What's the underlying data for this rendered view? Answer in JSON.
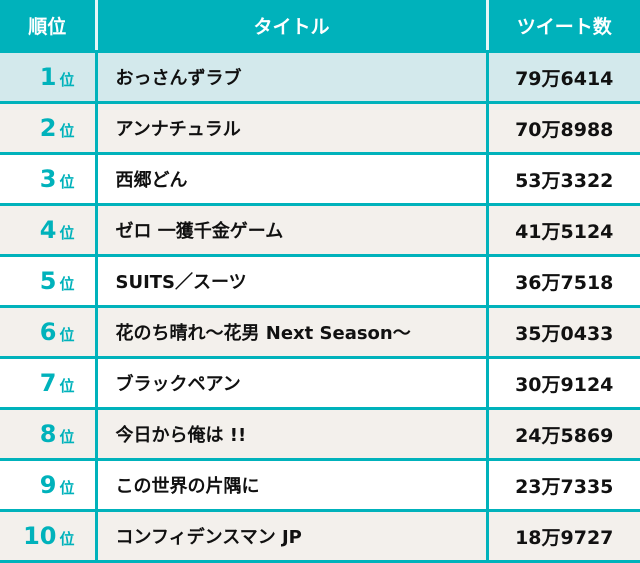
{
  "header": {
    "rank": "順位",
    "title": "タイトル",
    "tweets": "ツイート数"
  },
  "rank_suffix": "位",
  "colors": {
    "accent": "#00b2bb",
    "top_row": "#d3e9ec",
    "alt_row": "#f3f0ec"
  },
  "rows": [
    {
      "rank": "1",
      "title": "おっさんずラブ",
      "tweets": "79万6414"
    },
    {
      "rank": "2",
      "title": "アンナチュラル",
      "tweets": "70万8988"
    },
    {
      "rank": "3",
      "title": "西郷どん",
      "tweets": "53万3322"
    },
    {
      "rank": "4",
      "title": "ゼロ 一獲千金ゲーム",
      "tweets": "41万5124"
    },
    {
      "rank": "5",
      "title": "SUITS／スーツ",
      "tweets": "36万7518"
    },
    {
      "rank": "6",
      "title": "花のち晴れ～花男 Next Season～",
      "tweets": "35万0433"
    },
    {
      "rank": "7",
      "title": "ブラックペアン",
      "tweets": "30万9124"
    },
    {
      "rank": "8",
      "title": "今日から俺は !!",
      "tweets": "24万5869"
    },
    {
      "rank": "9",
      "title": "この世界の片隅に",
      "tweets": "23万7335"
    },
    {
      "rank": "10",
      "title": "コンフィデンスマン JP",
      "tweets": "18万9727"
    }
  ]
}
